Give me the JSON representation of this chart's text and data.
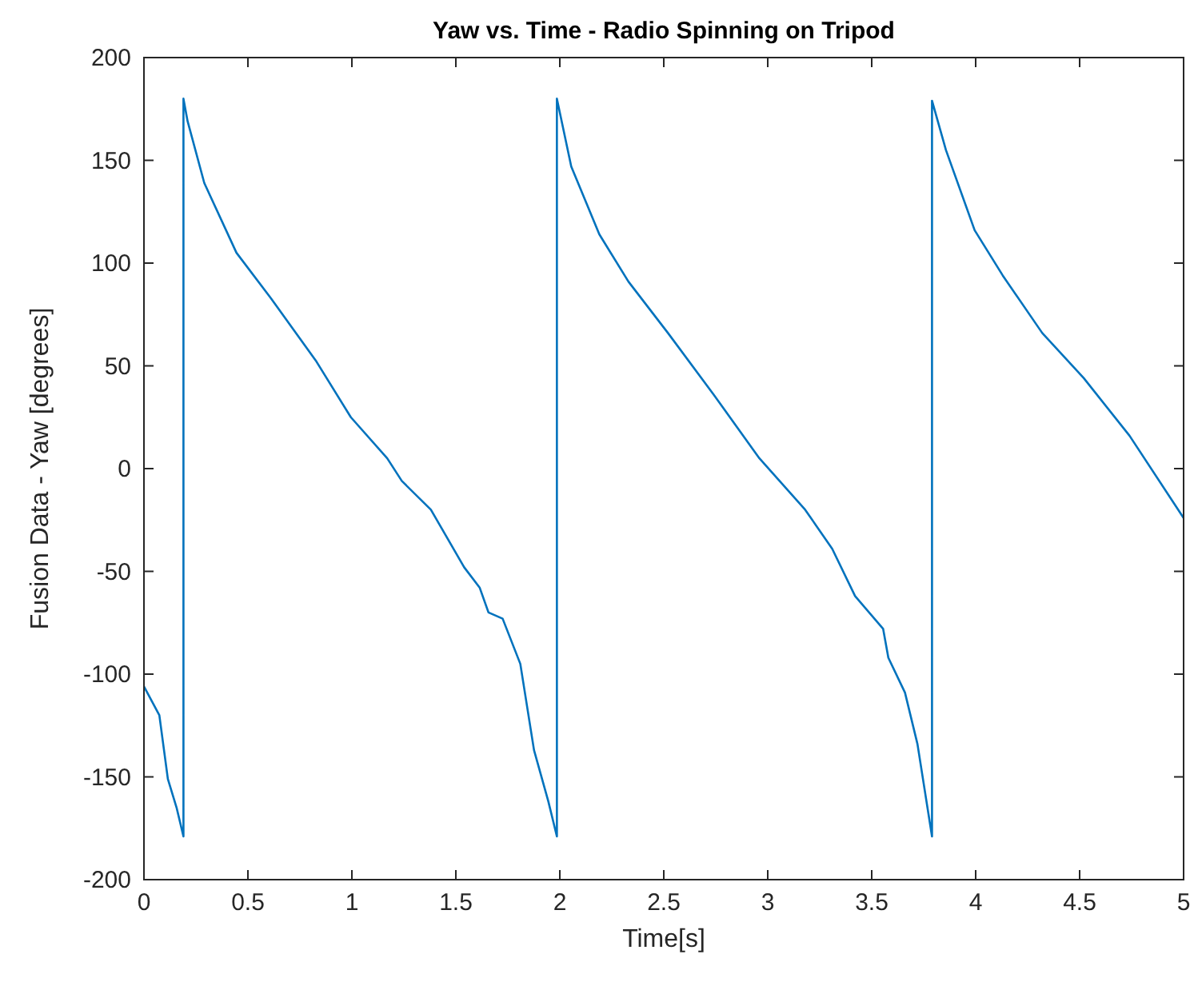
{
  "chart_data": {
    "type": "line",
    "title": "Yaw vs. Time - Radio Spinning on Tripod",
    "xlabel": "Time[s]",
    "ylabel": "Fusion Data - Yaw [degrees]",
    "xlim": [
      0,
      5
    ],
    "ylim": [
      -200,
      200
    ],
    "xticks": [
      0,
      0.5,
      1,
      1.5,
      2,
      2.5,
      3,
      3.5,
      4,
      4.5,
      5
    ],
    "yticks": [
      -200,
      -150,
      -100,
      -50,
      0,
      50,
      100,
      150,
      200
    ],
    "grid": false,
    "marker": "none",
    "line_style": "solid",
    "series": [
      {
        "color": "#0072bd",
        "x": [
          0,
          0.074,
          0.115,
          0.157,
          0.19,
          0.19,
          0.21,
          0.29,
          0.445,
          0.61,
          0.83,
          0.995,
          1.17,
          1.24,
          1.38,
          1.54,
          1.615,
          1.657,
          1.725,
          1.81,
          1.876,
          1.945,
          1.986,
          1.986,
          2.055,
          2.19,
          2.33,
          2.52,
          2.74,
          2.96,
          3.18,
          3.31,
          3.42,
          3.555,
          3.58,
          3.66,
          3.72,
          3.79,
          3.79,
          3.857,
          3.995,
          4.13,
          4.32,
          4.52,
          4.74,
          5
        ],
        "values": [
          -106,
          -120,
          -151,
          -165,
          -179,
          180,
          169,
          139,
          105,
          83,
          52,
          25,
          5,
          -6,
          -20,
          -48,
          -58,
          -70,
          -73,
          -95,
          -137,
          -162,
          -179,
          180,
          147,
          114,
          91,
          66,
          36,
          5,
          -20,
          -39,
          -62,
          -78,
          -92,
          -109,
          -134,
          -179,
          179,
          155,
          116,
          94,
          66,
          44,
          16,
          -24
        ]
      }
    ]
  }
}
